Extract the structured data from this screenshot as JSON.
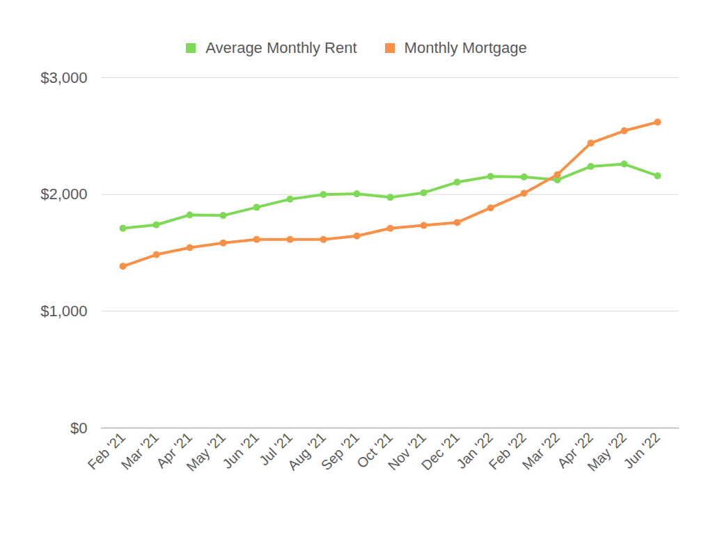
{
  "chart_data": {
    "type": "line",
    "categories": [
      "Feb '21",
      "Mar '21",
      "Apr '21",
      "May '21",
      "Jun '21",
      "Jul '21",
      "Aug '21",
      "Sep '21",
      "Oct '21",
      "Nov '21",
      "Dec '21",
      "Jan '22",
      "Feb '22",
      "Mar '22",
      "Apr '22",
      "May '22",
      "Jun '22"
    ],
    "series": [
      {
        "name": "Average Monthly Rent",
        "color": "#7ed957",
        "marker": "circle",
        "values": [
          1710,
          1740,
          1825,
          1820,
          1890,
          1960,
          2000,
          2005,
          1975,
          2015,
          2105,
          2155,
          2150,
          2125,
          2240,
          2260,
          2160
        ]
      },
      {
        "name": "Monthly Mortgage",
        "color": "#f79149",
        "marker": "circle",
        "values": [
          1385,
          1485,
          1545,
          1585,
          1615,
          1615,
          1615,
          1645,
          1710,
          1735,
          1760,
          1885,
          2010,
          2170,
          2440,
          2545,
          2620
        ]
      }
    ],
    "ylim": [
      0,
      3000
    ],
    "yticks": [
      {
        "value": 0,
        "label": "$0"
      },
      {
        "value": 1000,
        "label": "$1,000"
      },
      {
        "value": 2000,
        "label": "$2,000"
      },
      {
        "value": 3000,
        "label": "$3,000"
      }
    ],
    "grid": true,
    "legend": "top"
  }
}
